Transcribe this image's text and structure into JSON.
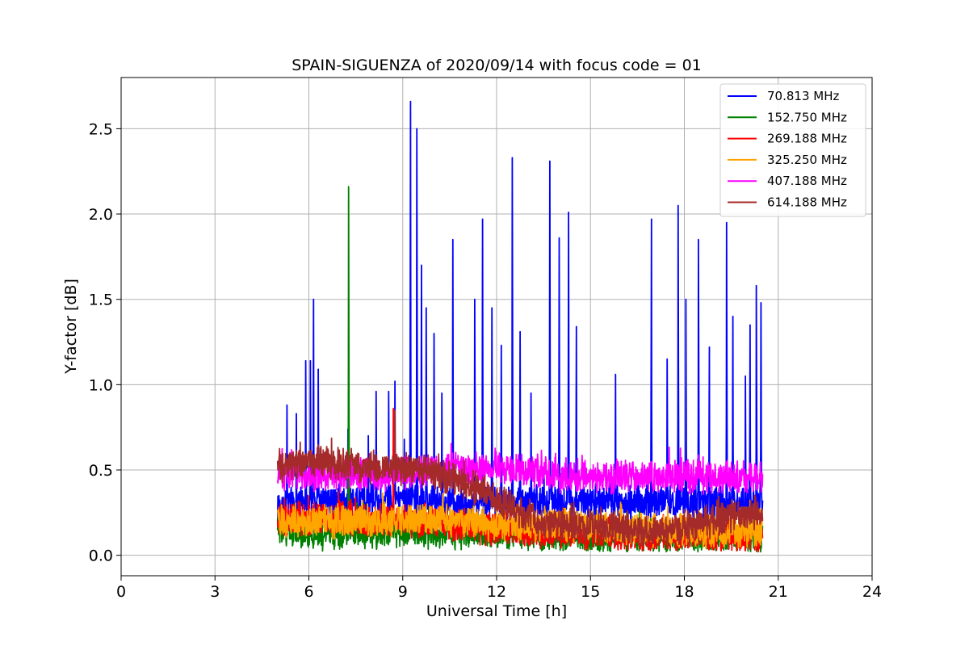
{
  "chart_data": {
    "type": "line",
    "title": "SPAIN-SIGUENZA of 2020/09/14 with focus code = 01",
    "xlabel": "Universal Time [h]",
    "ylabel": "Y-factor [dB]",
    "xlim": [
      0,
      24
    ],
    "ylim": [
      -0.12,
      2.8
    ],
    "xticks": [
      0,
      3,
      6,
      9,
      12,
      15,
      18,
      21,
      24
    ],
    "yticks": [
      0.0,
      0.5,
      1.0,
      1.5,
      2.0,
      2.5
    ],
    "xtick_labels": [
      "0",
      "3",
      "6",
      "9",
      "12",
      "15",
      "18",
      "21",
      "24"
    ],
    "ytick_labels": [
      "0.0",
      "0.5",
      "1.0",
      "1.5",
      "2.0",
      "2.5"
    ],
    "grid": true,
    "legend_position": "top-right",
    "data_range_x": [
      5.0,
      20.5
    ],
    "series": [
      {
        "name": " 70.813 MHz",
        "color": "#0000ff",
        "baseline": [
          [
            5.0,
            0.3
          ],
          [
            7.0,
            0.32
          ],
          [
            9.0,
            0.33
          ],
          [
            10.5,
            0.3
          ],
          [
            15.0,
            0.32
          ],
          [
            20.5,
            0.3
          ]
        ],
        "spikes": [
          [
            5.3,
            0.88
          ],
          [
            5.6,
            0.83
          ],
          [
            5.9,
            1.14
          ],
          [
            6.05,
            1.14
          ],
          [
            6.15,
            1.5
          ],
          [
            6.3,
            1.09
          ],
          [
            7.25,
            0.74
          ],
          [
            7.9,
            0.7
          ],
          [
            8.15,
            0.96
          ],
          [
            8.55,
            0.96
          ],
          [
            8.75,
            1.02
          ],
          [
            9.05,
            0.68
          ],
          [
            9.25,
            2.66
          ],
          [
            9.45,
            2.5
          ],
          [
            9.6,
            1.7
          ],
          [
            9.75,
            1.45
          ],
          [
            10.0,
            1.3
          ],
          [
            10.25,
            0.95
          ],
          [
            10.6,
            1.85
          ],
          [
            11.3,
            1.5
          ],
          [
            11.55,
            1.97
          ],
          [
            11.85,
            1.45
          ],
          [
            12.15,
            1.23
          ],
          [
            12.5,
            2.33
          ],
          [
            12.75,
            1.31
          ],
          [
            13.1,
            0.95
          ],
          [
            13.7,
            2.31
          ],
          [
            14.0,
            1.86
          ],
          [
            14.3,
            2.01
          ],
          [
            14.55,
            1.34
          ],
          [
            15.8,
            1.06
          ],
          [
            16.95,
            1.97
          ],
          [
            17.45,
            1.15
          ],
          [
            17.8,
            2.05
          ],
          [
            18.05,
            1.5
          ],
          [
            18.45,
            1.85
          ],
          [
            18.8,
            1.22
          ],
          [
            19.35,
            1.95
          ],
          [
            19.55,
            1.4
          ],
          [
            19.95,
            1.05
          ],
          [
            20.1,
            1.35
          ],
          [
            20.3,
            1.58
          ],
          [
            20.45,
            1.48
          ]
        ],
        "min_value": 0.03
      },
      {
        "name": "152.750 MHz",
        "color": "#008000",
        "baseline": [
          [
            5.0,
            0.13
          ],
          [
            10.0,
            0.14
          ],
          [
            15.0,
            0.11
          ],
          [
            20.5,
            0.1
          ]
        ],
        "spikes": [
          [
            7.27,
            2.16
          ]
        ],
        "min_value": 0.02
      },
      {
        "name": "269.188 MHz",
        "color": "#ff0000",
        "baseline": [
          [
            5.0,
            0.22
          ],
          [
            8.0,
            0.2
          ],
          [
            10.0,
            0.2
          ],
          [
            12.0,
            0.15
          ],
          [
            15.0,
            0.13
          ],
          [
            18.0,
            0.12
          ],
          [
            20.5,
            0.1
          ]
        ],
        "spikes": [
          [
            8.7,
            0.86
          ]
        ],
        "min_value": 0.02
      },
      {
        "name": "325.250 MHz",
        "color": "#ffa500",
        "baseline": [
          [
            5.0,
            0.19
          ],
          [
            8.0,
            0.2
          ],
          [
            10.0,
            0.22
          ],
          [
            12.0,
            0.18
          ],
          [
            15.0,
            0.17
          ],
          [
            18.0,
            0.14
          ],
          [
            20.5,
            0.15
          ]
        ],
        "spikes": [],
        "min_value": 0.0
      },
      {
        "name": "407.188 MHz",
        "color": "#ff00ff",
        "baseline": [
          [
            5.0,
            0.47
          ],
          [
            9.0,
            0.48
          ],
          [
            10.5,
            0.5
          ],
          [
            12.0,
            0.52
          ],
          [
            14.0,
            0.47
          ],
          [
            16.0,
            0.46
          ],
          [
            18.0,
            0.46
          ],
          [
            20.5,
            0.45
          ]
        ],
        "spikes": [],
        "min_value": 0.3
      },
      {
        "name": "614.188 MHz",
        "color": "#a52a2a",
        "baseline": [
          [
            5.0,
            0.52
          ],
          [
            6.0,
            0.55
          ],
          [
            7.0,
            0.53
          ],
          [
            8.0,
            0.52
          ],
          [
            9.5,
            0.5
          ],
          [
            10.5,
            0.45
          ],
          [
            11.5,
            0.38
          ],
          [
            12.5,
            0.27
          ],
          [
            13.5,
            0.19
          ],
          [
            15.0,
            0.17
          ],
          [
            17.0,
            0.14
          ],
          [
            18.5,
            0.18
          ],
          [
            19.5,
            0.23
          ],
          [
            20.5,
            0.25
          ]
        ],
        "spikes": [
          [
            8.75,
            0.85
          ]
        ],
        "min_value": 0.05
      }
    ]
  }
}
